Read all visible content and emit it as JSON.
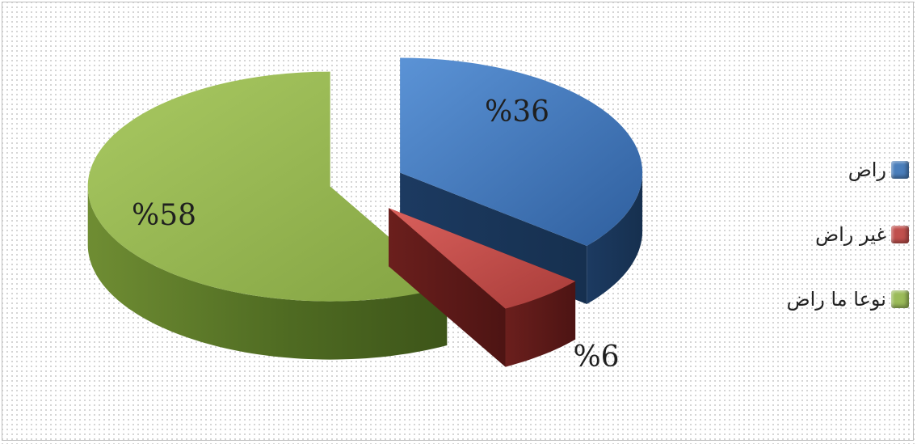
{
  "chart_data": {
    "type": "pie",
    "style": "3d-exploded",
    "categories": [
      "راض",
      "غير راض",
      "نوعا ما راض"
    ],
    "values": [
      36,
      6,
      58
    ],
    "data_labels": [
      "%36",
      "%6",
      "%58"
    ],
    "colors": [
      "#4a7ebb",
      "#c0504d",
      "#9bbb59"
    ],
    "legend_position": "right"
  }
}
